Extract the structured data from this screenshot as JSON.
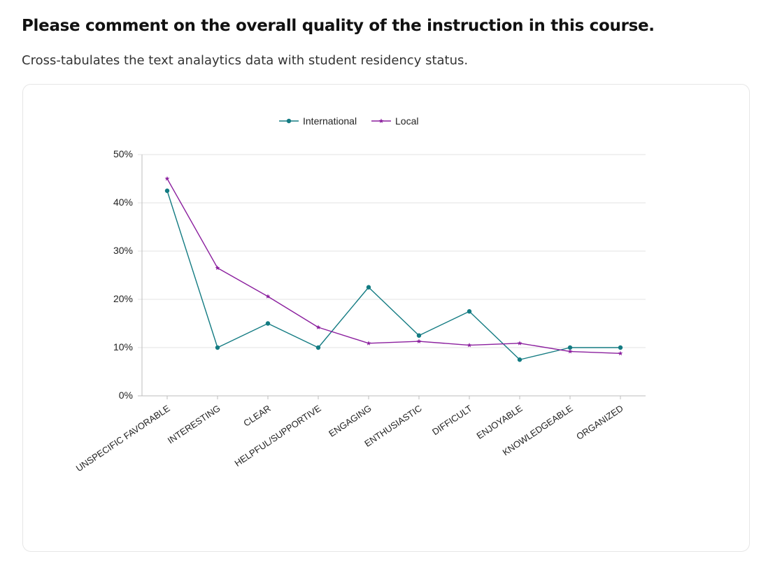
{
  "header": {
    "title": "Please comment on the overall quality of the instruction in this course.",
    "subtitle": "Cross-tabulates the text analaytics data with student residency status."
  },
  "chart_data": {
    "type": "line",
    "categories": [
      "UNSPECIFIC FAVORABLE",
      "INTERESTING",
      "CLEAR",
      "HELPFUL/SUPPORTIVE",
      "ENGAGING",
      "ENTHUSIASTIC",
      "DIFFICULT",
      "ENJOYABLE",
      "KNOWLEDGEABLE",
      "ORGANIZED"
    ],
    "series": [
      {
        "name": "International",
        "color": "#137b82",
        "marker": "circle",
        "values": [
          42.5,
          10,
          15,
          10,
          22.5,
          12.5,
          17.5,
          7.5,
          10,
          10
        ]
      },
      {
        "name": "Local",
        "color": "#8b1f9e",
        "marker": "star",
        "values": [
          45,
          26.5,
          20.6,
          14.2,
          10.9,
          11.3,
          10.5,
          10.9,
          9.2,
          8.8
        ]
      }
    ],
    "yticks": [
      "0%",
      "10%",
      "20%",
      "30%",
      "40%",
      "50%"
    ],
    "ylim": [
      0,
      50
    ],
    "grid": true,
    "legend": "top-center"
  }
}
